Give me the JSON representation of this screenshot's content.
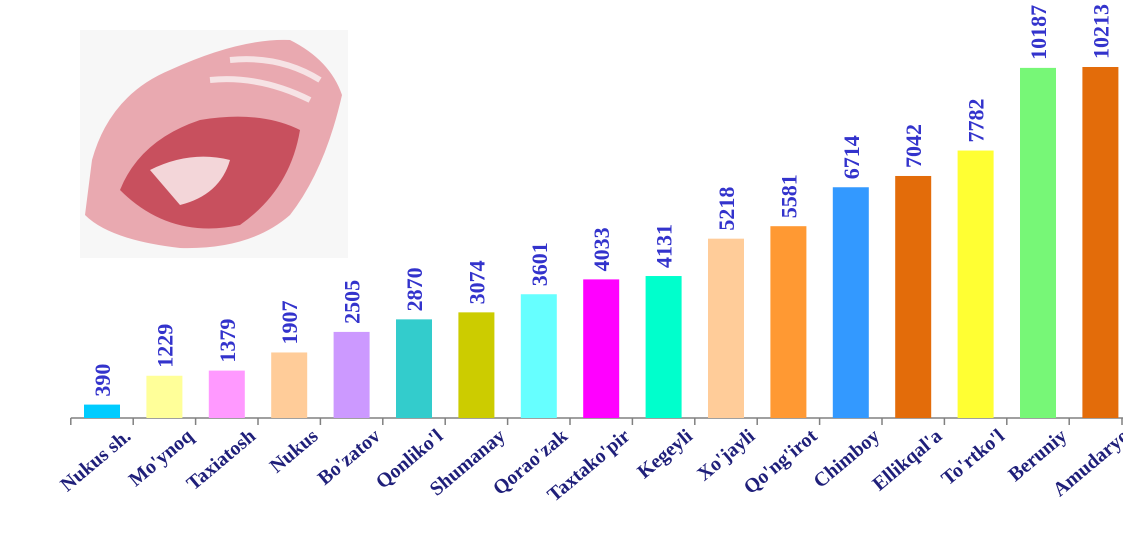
{
  "chart_data": {
    "type": "bar",
    "categories": [
      "Nukus sh.",
      "Mo'ynoq",
      "Taxiatosh",
      "Nukus",
      "Bo'zatov",
      "Qonliko'l",
      "Shumanay",
      "Qorao'zak",
      "Taxtako'pir",
      "Kegeyli",
      "Xo'jayli",
      "Qo'ng'irot",
      "Chimboy",
      "Ellikqal'a",
      "To'rtko'l",
      "Beruniy",
      "Amudaryo"
    ],
    "values": [
      390,
      1229,
      1379,
      1907,
      2505,
      2870,
      3074,
      3601,
      4033,
      4131,
      5218,
      5581,
      6714,
      7042,
      7782,
      10187,
      10213
    ],
    "colors": [
      "#00ccff",
      "#ffff99",
      "#ff99ff",
      "#ffcc99",
      "#cc99ff",
      "#33cccc",
      "#cccc00",
      "#66ffff",
      "#ff00ff",
      "#00ffcc",
      "#ffcc99",
      "#ff9933",
      "#3399ff",
      "#e36c0a",
      "#ffff33",
      "#77f777",
      "#e36c0a"
    ]
  }
}
